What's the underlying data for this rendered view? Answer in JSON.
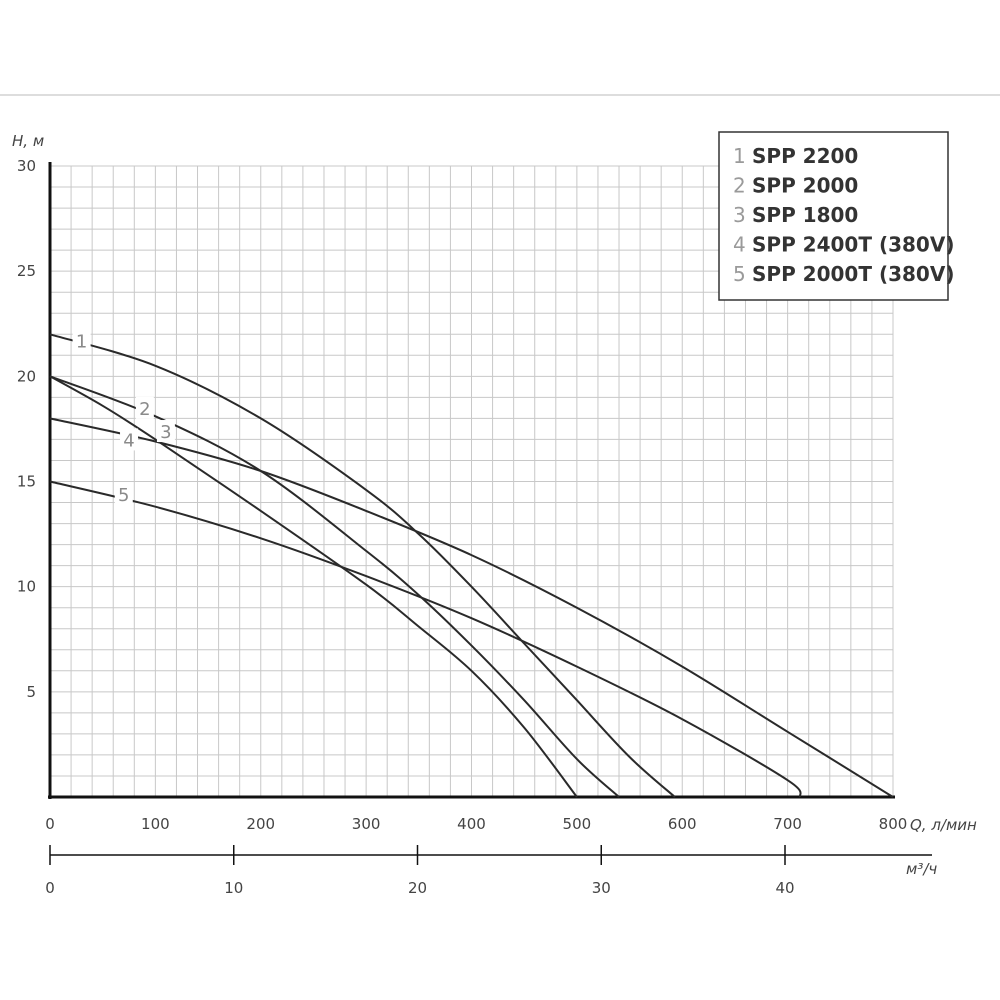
{
  "chart_data": {
    "type": "line",
    "ylabel": "H, м",
    "xlabel": "Q, л/мин",
    "x2label": "м³/ч",
    "xlim": [
      0,
      800
    ],
    "ylim": [
      0,
      30
    ],
    "x2lim": [
      0,
      48
    ],
    "grid": true,
    "legend_position": "top-right",
    "y_ticks": [
      "30",
      "25",
      "20",
      "15",
      "10",
      "5"
    ],
    "y_tick_values": [
      30,
      25,
      20,
      15,
      10,
      5
    ],
    "x_ticks": [
      "0",
      "100",
      "200",
      "300",
      "400",
      "500",
      "600",
      "700",
      "800"
    ],
    "x_tick_values": [
      0,
      100,
      200,
      300,
      400,
      500,
      600,
      700,
      800
    ],
    "x2_ticks": [
      "0",
      "10",
      "20",
      "30",
      "40"
    ],
    "x2_tick_values": [
      0,
      10,
      20,
      30,
      40
    ],
    "series": [
      {
        "name": "SPP 2200",
        "label": "1",
        "legend_num": "1",
        "x": [
          0,
          100,
          200,
          300,
          350,
          400,
          450,
          500,
          550,
          593
        ],
        "y": [
          22,
          20.5,
          18,
          14.6,
          12.5,
          10.0,
          7.3,
          4.6,
          1.9,
          0
        ],
        "label_x": 30,
        "label_y": 21.7
      },
      {
        "name": "SPP 2000",
        "label": "2",
        "legend_num": "2",
        "x": [
          0,
          100,
          200,
          300,
          350,
          400,
          450,
          500,
          540
        ],
        "y": [
          20,
          18.1,
          15.5,
          11.7,
          9.6,
          7.2,
          4.6,
          1.8,
          0
        ],
        "label_x": 90,
        "label_y": 18.5
      },
      {
        "name": "SPP 1800",
        "label": "3",
        "legend_num": "3",
        "x": [
          0,
          50,
          100,
          200,
          300,
          350,
          400,
          450,
          500
        ],
        "y": [
          20,
          18.6,
          17,
          13.6,
          10.1,
          8.1,
          6.0,
          3.3,
          0
        ],
        "label_x": 110,
        "label_y": 17.4
      },
      {
        "name": "SPP 2400T (380V)",
        "label": "4",
        "legend_num": "4",
        "x": [
          0,
          100,
          200,
          300,
          400,
          500,
          600,
          700,
          800
        ],
        "y": [
          18,
          16.9,
          15.5,
          13.6,
          11.5,
          9.0,
          6.2,
          3.1,
          0
        ],
        "label_x": 75,
        "label_y": 17.0
      },
      {
        "name": "SPP 2000T (380V)",
        "label": "5",
        "legend_num": "5",
        "x": [
          0,
          100,
          200,
          300,
          400,
          500,
          600,
          700,
          712
        ],
        "y": [
          15,
          13.8,
          12.3,
          10.5,
          8.5,
          6.2,
          3.7,
          0.8,
          0
        ],
        "label_x": 70,
        "label_y": 14.4
      }
    ]
  }
}
